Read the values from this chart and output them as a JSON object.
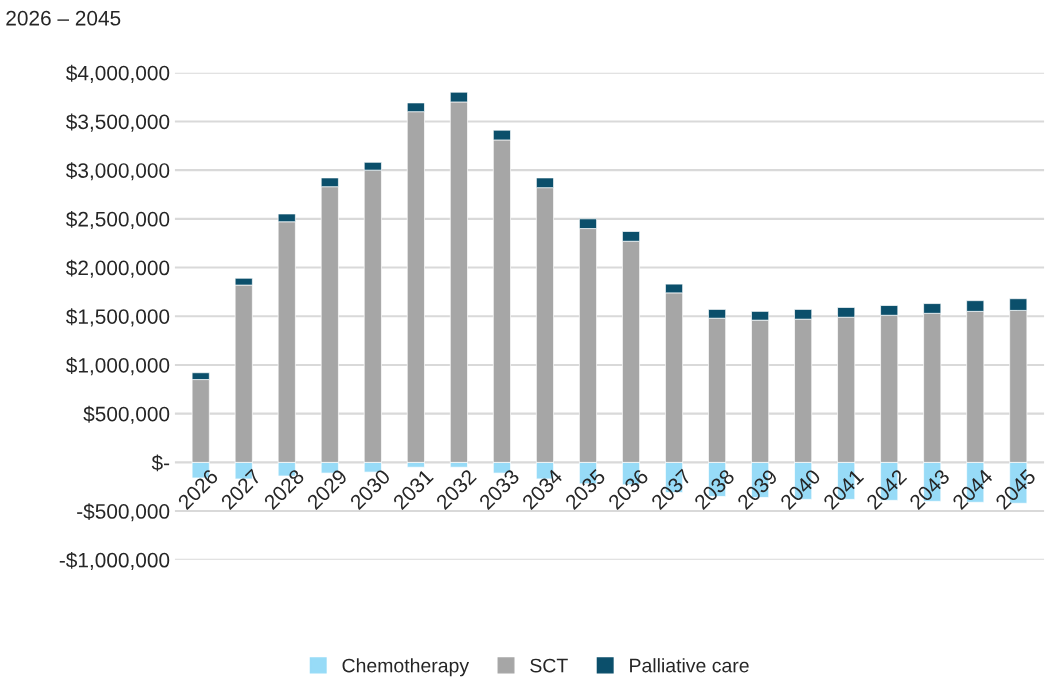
{
  "chart_data": {
    "type": "bar",
    "title": "2026 – 2045",
    "stacked": true,
    "grid": "y",
    "legend": "bottom",
    "categories": [
      "2026",
      "2027",
      "2028",
      "2029",
      "2030",
      "2031",
      "2032",
      "2033",
      "2034",
      "2035",
      "2036",
      "2037",
      "2038",
      "2039",
      "2040",
      "2041",
      "2042",
      "2043",
      "2044",
      "2045"
    ],
    "series": [
      {
        "name": "Chemotherapy",
        "color": "#97dbf7",
        "values": [
          -160000,
          -170000,
          -140000,
          -110000,
          -100000,
          -50000,
          -50000,
          -110000,
          -170000,
          -220000,
          -230000,
          -310000,
          -350000,
          -360000,
          -380000,
          -380000,
          -390000,
          -400000,
          -410000,
          -420000
        ]
      },
      {
        "name": "SCT",
        "color": "#a6a6a6",
        "values": [
          850000,
          1820000,
          2470000,
          2830000,
          3000000,
          3600000,
          3700000,
          3310000,
          2820000,
          2400000,
          2270000,
          1740000,
          1480000,
          1460000,
          1470000,
          1490000,
          1510000,
          1530000,
          1550000,
          1560000
        ]
      },
      {
        "name": "Palliative care",
        "color": "#0b4f6b",
        "values": [
          70000,
          70000,
          80000,
          90000,
          80000,
          90000,
          100000,
          100000,
          100000,
          100000,
          100000,
          90000,
          90000,
          90000,
          100000,
          100000,
          100000,
          100000,
          110000,
          120000
        ]
      }
    ],
    "ylim": [
      -1000000,
      4000000
    ],
    "yticks": [
      {
        "value": -1000000,
        "label": "-$1,000,000"
      },
      {
        "value": -500000,
        "label": "-$500,000"
      },
      {
        "value": 0,
        "label": "$-"
      },
      {
        "value": 500000,
        "label": "$500,000"
      },
      {
        "value": 1000000,
        "label": "$1,000,000"
      },
      {
        "value": 1500000,
        "label": "$1,500,000"
      },
      {
        "value": 2000000,
        "label": "$2,000,000"
      },
      {
        "value": 2500000,
        "label": "$2,500,000"
      },
      {
        "value": 3000000,
        "label": "$3,000,000"
      },
      {
        "value": 3500000,
        "label": "$3,500,000"
      },
      {
        "value": 4000000,
        "label": "$4,000,000"
      }
    ]
  }
}
